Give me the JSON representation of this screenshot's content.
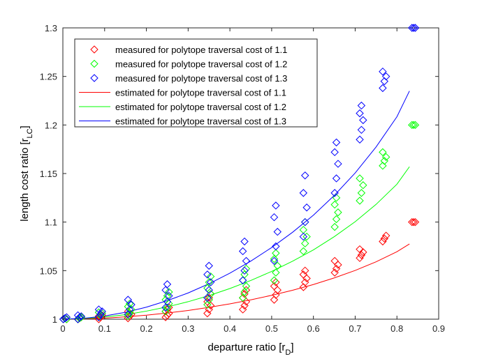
{
  "chart_data": {
    "type": "scatter",
    "title": "",
    "xlabel": "departure ratio [r",
    "xlabel_sub": "D",
    "xlabel_tail": "]",
    "ylabel": "length cost ratio [r",
    "ylabel_sub": "LC",
    "ylabel_tail": "]",
    "xlim": [
      0,
      0.9
    ],
    "ylim": [
      1,
      1.3
    ],
    "xticks": [
      0,
      0.1,
      0.2,
      0.3,
      0.4,
      0.5,
      0.6,
      0.7,
      0.8,
      0.9
    ],
    "xtick_labels": [
      "0",
      "0.1",
      "0.2",
      "0.3",
      "0.4",
      "0.5",
      "0.6",
      "0.7",
      "0.8",
      "0.9"
    ],
    "yticks": [
      1,
      1.05,
      1.1,
      1.15,
      1.2,
      1.25,
      1.3
    ],
    "ytick_labels": [
      "1",
      "1.05",
      "1.1",
      "1.15",
      "1.2",
      "1.25",
      "1.3"
    ],
    "grid": false,
    "legend_position": "top-left",
    "colors": {
      "red": "#ff0000",
      "green": "#00ff00",
      "blue": "#0000ff"
    },
    "measured": [
      {
        "name": "measured for polytope traversal cost of 1.1",
        "color": "#ff0000",
        "marker": "diamond",
        "clusters": [
          {
            "x": 0.005,
            "ys": [
              1.0,
              1.001,
              1.0
            ]
          },
          {
            "x": 0.04,
            "ys": [
              1.0,
              1.001,
              1.002,
              1.0
            ]
          },
          {
            "x": 0.09,
            "ys": [
              1.0,
              1.002,
              1.004,
              1.003
            ]
          },
          {
            "x": 0.16,
            "ys": [
              1.001,
              1.003,
              1.005,
              1.008,
              1.006
            ]
          },
          {
            "x": 0.25,
            "ys": [
              1.002,
              1.004,
              1.006,
              1.008,
              1.01,
              1.012
            ]
          },
          {
            "x": 0.35,
            "ys": [
              1.006,
              1.01,
              1.014,
              1.018,
              1.022,
              1.026
            ]
          },
          {
            "x": 0.435,
            "ys": [
              1.01,
              1.014,
              1.018,
              1.022,
              1.026,
              1.03
            ]
          },
          {
            "x": 0.51,
            "ys": [
              1.02,
              1.025,
              1.03,
              1.034,
              1.038
            ]
          },
          {
            "x": 0.58,
            "ys": [
              1.033,
              1.038,
              1.042,
              1.046,
              1.05
            ]
          },
          {
            "x": 0.655,
            "ys": [
              1.048,
              1.052,
              1.056,
              1.06
            ]
          },
          {
            "x": 0.715,
            "ys": [
              1.063,
              1.066,
              1.069,
              1.072
            ]
          },
          {
            "x": 0.77,
            "ys": [
              1.08,
              1.083,
              1.086
            ]
          },
          {
            "x": 0.84,
            "ys": [
              1.1,
              1.1,
              1.1
            ]
          }
        ]
      },
      {
        "name": "measured for polytope traversal cost of 1.2",
        "color": "#00ff00",
        "marker": "diamond",
        "clusters": [
          {
            "x": 0.005,
            "ys": [
              1.0,
              1.001,
              1.0
            ]
          },
          {
            "x": 0.04,
            "ys": [
              1.0,
              1.001,
              1.002,
              1.0
            ]
          },
          {
            "x": 0.09,
            "ys": [
              1.002,
              1.004,
              1.006,
              1.007
            ]
          },
          {
            "x": 0.16,
            "ys": [
              1.003,
              1.006,
              1.01,
              1.013,
              1.016
            ]
          },
          {
            "x": 0.25,
            "ys": [
              1.008,
              1.012,
              1.016,
              1.02,
              1.024,
              1.028
            ]
          },
          {
            "x": 0.35,
            "ys": [
              1.015,
              1.02,
              1.026,
              1.032,
              1.038,
              1.044
            ]
          },
          {
            "x": 0.435,
            "ys": [
              1.022,
              1.028,
              1.034,
              1.04,
              1.046,
              1.052
            ]
          },
          {
            "x": 0.51,
            "ys": [
              1.04,
              1.048,
              1.055,
              1.062,
              1.068
            ]
          },
          {
            "x": 0.58,
            "ys": [
              1.07,
              1.078,
              1.085,
              1.092,
              1.1
            ]
          },
          {
            "x": 0.655,
            "ys": [
              1.095,
              1.103,
              1.11,
              1.118,
              1.125
            ]
          },
          {
            "x": 0.715,
            "ys": [
              1.122,
              1.13,
              1.138,
              1.145
            ]
          },
          {
            "x": 0.77,
            "ys": [
              1.158,
              1.163,
              1.167,
              1.172
            ]
          },
          {
            "x": 0.84,
            "ys": [
              1.2,
              1.2,
              1.2
            ]
          }
        ]
      },
      {
        "name": "measured for polytope traversal cost of 1.3",
        "color": "#0000ff",
        "marker": "diamond",
        "clusters": [
          {
            "x": 0.005,
            "ys": [
              1.0,
              1.001,
              1.002
            ]
          },
          {
            "x": 0.04,
            "ys": [
              1.0,
              1.002,
              1.003,
              1.004
            ]
          },
          {
            "x": 0.09,
            "ys": [
              1.002,
              1.005,
              1.008,
              1.01
            ]
          },
          {
            "x": 0.16,
            "ys": [
              1.005,
              1.01,
              1.015,
              1.02
            ]
          },
          {
            "x": 0.25,
            "ys": [
              1.012,
              1.018,
              1.024,
              1.03,
              1.036
            ]
          },
          {
            "x": 0.35,
            "ys": [
              1.022,
              1.03,
              1.038,
              1.046,
              1.055
            ]
          },
          {
            "x": 0.435,
            "ys": [
              1.04,
              1.05,
              1.06,
              1.07,
              1.08
            ]
          },
          {
            "x": 0.51,
            "ys": [
              1.06,
              1.075,
              1.09,
              1.105,
              1.117
            ]
          },
          {
            "x": 0.58,
            "ys": [
              1.085,
              1.1,
              1.115,
              1.13,
              1.148
            ]
          },
          {
            "x": 0.655,
            "ys": [
              1.13,
              1.145,
              1.16,
              1.172,
              1.182
            ]
          },
          {
            "x": 0.715,
            "ys": [
              1.185,
              1.195,
              1.205,
              1.212,
              1.22
            ]
          },
          {
            "x": 0.77,
            "ys": [
              1.238,
              1.245,
              1.25,
              1.255
            ]
          },
          {
            "x": 0.84,
            "ys": [
              1.3,
              1.3,
              1.3
            ]
          }
        ]
      }
    ],
    "estimated": [
      {
        "name": "estimated for polytope traversal cost of 1.1",
        "color": "#ff0000",
        "x": [
          0,
          0.05,
          0.1,
          0.15,
          0.2,
          0.25,
          0.3,
          0.35,
          0.4,
          0.45,
          0.5,
          0.55,
          0.6,
          0.65,
          0.7,
          0.75,
          0.8,
          0.83
        ],
        "y": [
          1.0,
          1.0003,
          1.0011,
          1.0024,
          1.0041,
          1.0064,
          1.009,
          1.0122,
          1.0158,
          1.0199,
          1.0246,
          1.0298,
          1.0357,
          1.0425,
          1.0502,
          1.0591,
          1.0695,
          1.0775
        ]
      },
      {
        "name": "estimated for polytope traversal cost of 1.2",
        "color": "#00ff00",
        "x": [
          0,
          0.05,
          0.1,
          0.15,
          0.2,
          0.25,
          0.3,
          0.35,
          0.4,
          0.45,
          0.5,
          0.55,
          0.6,
          0.65,
          0.7,
          0.75,
          0.8,
          0.83
        ],
        "y": [
          1.0,
          1.0006,
          1.0022,
          1.0047,
          1.0083,
          1.0127,
          1.018,
          1.0243,
          1.0316,
          1.0399,
          1.0492,
          1.0597,
          1.0714,
          1.085,
          1.1004,
          1.1182,
          1.139,
          1.157
        ]
      },
      {
        "name": "estimated for polytope traversal cost of 1.3",
        "color": "#0000ff",
        "x": [
          0,
          0.05,
          0.1,
          0.15,
          0.2,
          0.25,
          0.3,
          0.35,
          0.4,
          0.45,
          0.5,
          0.55,
          0.6,
          0.65,
          0.7,
          0.75,
          0.8,
          0.83
        ],
        "y": [
          1.0,
          1.0009,
          1.0033,
          1.0071,
          1.0124,
          1.0191,
          1.027,
          1.0365,
          1.0474,
          1.0598,
          1.0738,
          1.0895,
          1.1071,
          1.1275,
          1.1506,
          1.1773,
          1.2085,
          1.235
        ]
      }
    ],
    "legend": [
      {
        "label": "measured for polytope traversal cost of 1.1",
        "color": "#ff0000",
        "kind": "marker"
      },
      {
        "label": "measured for polytope traversal cost of 1.2",
        "color": "#00ff00",
        "kind": "marker"
      },
      {
        "label": "measured for polytope traversal cost of 1.3",
        "color": "#0000ff",
        "kind": "marker"
      },
      {
        "label": "estimated for polytope traversal cost of 1.1",
        "color": "#ff0000",
        "kind": "line"
      },
      {
        "label": "estimated for polytope traversal cost of 1.2",
        "color": "#00ff00",
        "kind": "line"
      },
      {
        "label": "estimated for polytope traversal cost of 1.3",
        "color": "#0000ff",
        "kind": "line"
      }
    ]
  }
}
